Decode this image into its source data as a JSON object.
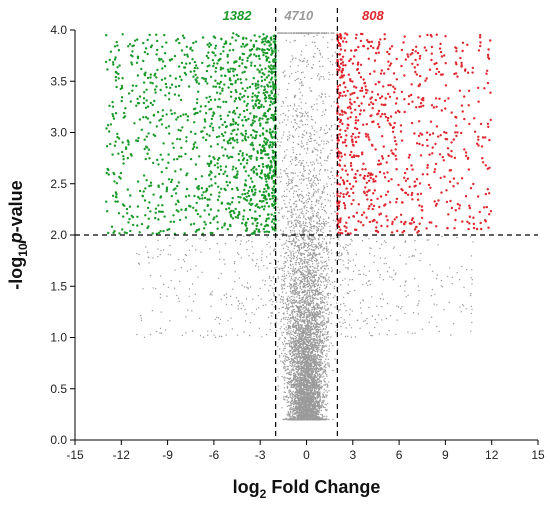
{
  "chart_data": {
    "type": "scatter",
    "title": "",
    "xlabel": {
      "base": "log",
      "subscript": "2",
      "rest": " Fold Change"
    },
    "ylabel": {
      "base": "-log",
      "subscript": "10",
      "italic": "p",
      "rest": "-value"
    },
    "xlim": [
      -15,
      15
    ],
    "ylim": [
      0,
      4
    ],
    "xticks": [
      -15,
      -12,
      -9,
      -6,
      -3,
      0,
      3,
      6,
      9,
      12,
      15
    ],
    "yticks": [
      0.0,
      0.5,
      1.0,
      1.5,
      2.0,
      2.5,
      3.0,
      3.5,
      4.0
    ],
    "ytick_labels": [
      "0.0",
      "0.5",
      "1.0",
      "1.5",
      "2.0",
      "2.5",
      "3.0",
      "3.5",
      "4.0"
    ],
    "thresholds": {
      "x": [
        -2,
        2
      ],
      "y": 2
    },
    "grid": false,
    "colors": {
      "down": "#1a9a2a",
      "neutral": "#9a9a9a",
      "up": "#e0262e",
      "dashed": "#000000"
    },
    "series": [
      {
        "key": "down",
        "color": "#1a9a2a",
        "count_label": "1382",
        "region": {
          "x": [
            -15,
            -2
          ],
          "y": [
            2,
            4
          ]
        }
      },
      {
        "key": "neutral",
        "color": "#9a9a9a",
        "count_label": "4710",
        "region": {
          "x": [
            -2,
            2
          ],
          "y": [
            0,
            4
          ]
        }
      },
      {
        "key": "up",
        "color": "#e0262e",
        "count_label": "808",
        "region": {
          "x": [
            2,
            15
          ],
          "y": [
            2,
            4
          ]
        }
      }
    ]
  }
}
